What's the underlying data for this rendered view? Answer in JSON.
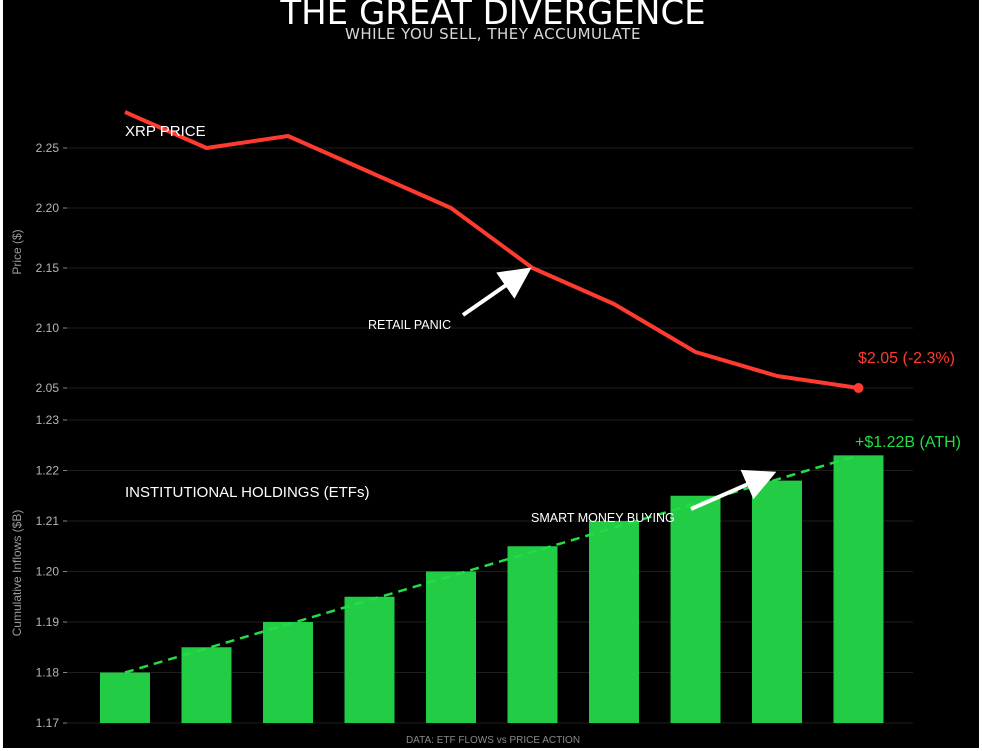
{
  "title": "THE GREAT DIVERGENCE",
  "subtitle": "WHILE YOU SELL, THEY ACCUMULATE",
  "footer": "DATA: ETF FLOWS vs PRICE ACTION",
  "colors": {
    "price_line": "#ff3b30",
    "bars": "#22cc44",
    "trend": "#22dd44",
    "annotation": "#ffffff",
    "grid": "#1e1e1e"
  },
  "chart_data": [
    {
      "type": "line",
      "series_label": "XRP PRICE",
      "ylabel": "Price ($)",
      "ylim": [
        2.04,
        2.27
      ],
      "yticks": [
        "2.25",
        "2.20",
        "2.15",
        "2.10",
        "2.05"
      ],
      "ytick_values": [
        2.25,
        2.2,
        2.15,
        2.1,
        2.05
      ],
      "x": [
        1,
        2,
        3,
        4,
        5,
        6,
        7,
        8,
        9,
        10
      ],
      "values": [
        2.28,
        2.25,
        2.26,
        2.23,
        2.2,
        2.15,
        2.12,
        2.08,
        2.06,
        2.05
      ],
      "end_label": "$2.05 (-2.3%)",
      "annotation": {
        "text": "RETAIL PANIC",
        "x": 6,
        "y": 2.15
      },
      "grid": true
    },
    {
      "type": "bar",
      "series_label": "INSTITUTIONAL HOLDINGS (ETFs)",
      "ylabel": "Cumulative Inflows ($B)",
      "ylim": [
        1.17,
        1.23
      ],
      "yticks": [
        "1.23",
        "1.22",
        "1.21",
        "1.20",
        "1.19",
        "1.18",
        "1.17"
      ],
      "ytick_values": [
        1.23,
        1.22,
        1.21,
        1.2,
        1.19,
        1.18,
        1.17
      ],
      "x": [
        1,
        2,
        3,
        4,
        5,
        6,
        7,
        8,
        9,
        10
      ],
      "values": [
        1.18,
        1.185,
        1.19,
        1.195,
        1.2,
        1.205,
        1.21,
        1.215,
        1.218,
        1.223
      ],
      "trend": {
        "style": "dashed",
        "start": 1.18,
        "end": 1.223
      },
      "end_label": "+$1.22B (ATH)",
      "annotation": {
        "text": "SMART MONEY BUYING",
        "x": 9,
        "y": 1.22
      },
      "grid": true
    }
  ]
}
